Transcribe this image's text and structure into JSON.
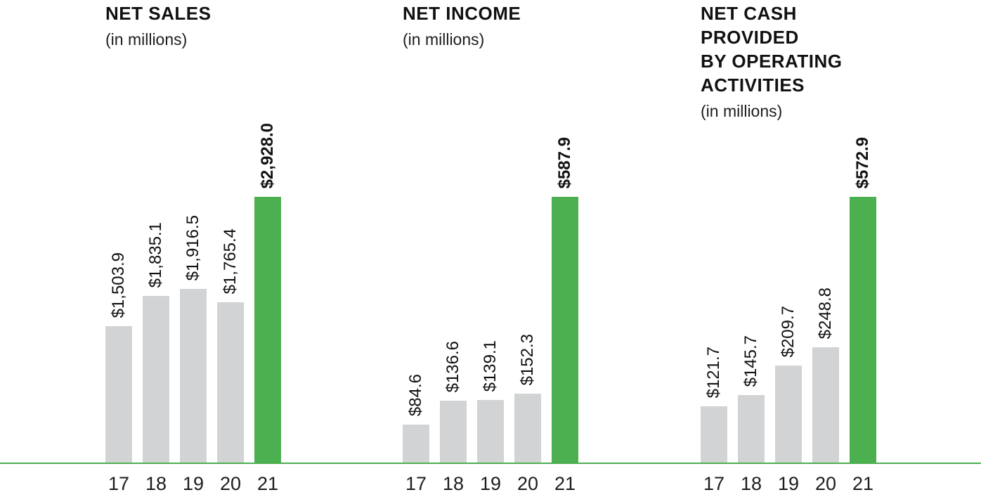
{
  "colors": {
    "bar_default": "#d1d3d4",
    "bar_highlight": "#4caf50",
    "axis_line": "#4caf50",
    "text": "#111111"
  },
  "chart_data": [
    {
      "type": "bar",
      "title": "NET SALES",
      "subtitle": "(in millions)",
      "categories": [
        "17",
        "18",
        "19",
        "20",
        "21"
      ],
      "values": [
        1503.9,
        1835.1,
        1916.5,
        1765.4,
        2928.0
      ],
      "labels": [
        "$1,503.9",
        "$1,835.1",
        "$1,916.5",
        "$1,765.4",
        "$2,928.0"
      ],
      "highlight_index": 4,
      "ylim": [
        0,
        2928.0
      ],
      "grid": false,
      "legend": "none",
      "value_labels_rotated": true
    },
    {
      "type": "bar",
      "title": "NET INCOME",
      "subtitle": "(in millions)",
      "categories": [
        "17",
        "18",
        "19",
        "20",
        "21"
      ],
      "values": [
        84.6,
        136.6,
        139.1,
        152.3,
        587.9
      ],
      "labels": [
        "$84.6",
        "$136.6",
        "$139.1",
        "$152.3",
        "$587.9"
      ],
      "highlight_index": 4,
      "ylim": [
        0,
        587.9
      ],
      "grid": false,
      "legend": "none",
      "value_labels_rotated": true
    },
    {
      "type": "bar",
      "title": "NET CASH\nPROVIDED\nBY OPERATING\nACTIVITIES",
      "subtitle": "(in millions)",
      "categories": [
        "17",
        "18",
        "19",
        "20",
        "21"
      ],
      "values": [
        121.7,
        145.7,
        209.7,
        248.8,
        572.9
      ],
      "labels": [
        "$121.7",
        "$145.7",
        "$209.7",
        "$248.8",
        "$572.9"
      ],
      "highlight_index": 4,
      "ylim": [
        0,
        572.9
      ],
      "grid": false,
      "legend": "none",
      "value_labels_rotated": true
    }
  ]
}
